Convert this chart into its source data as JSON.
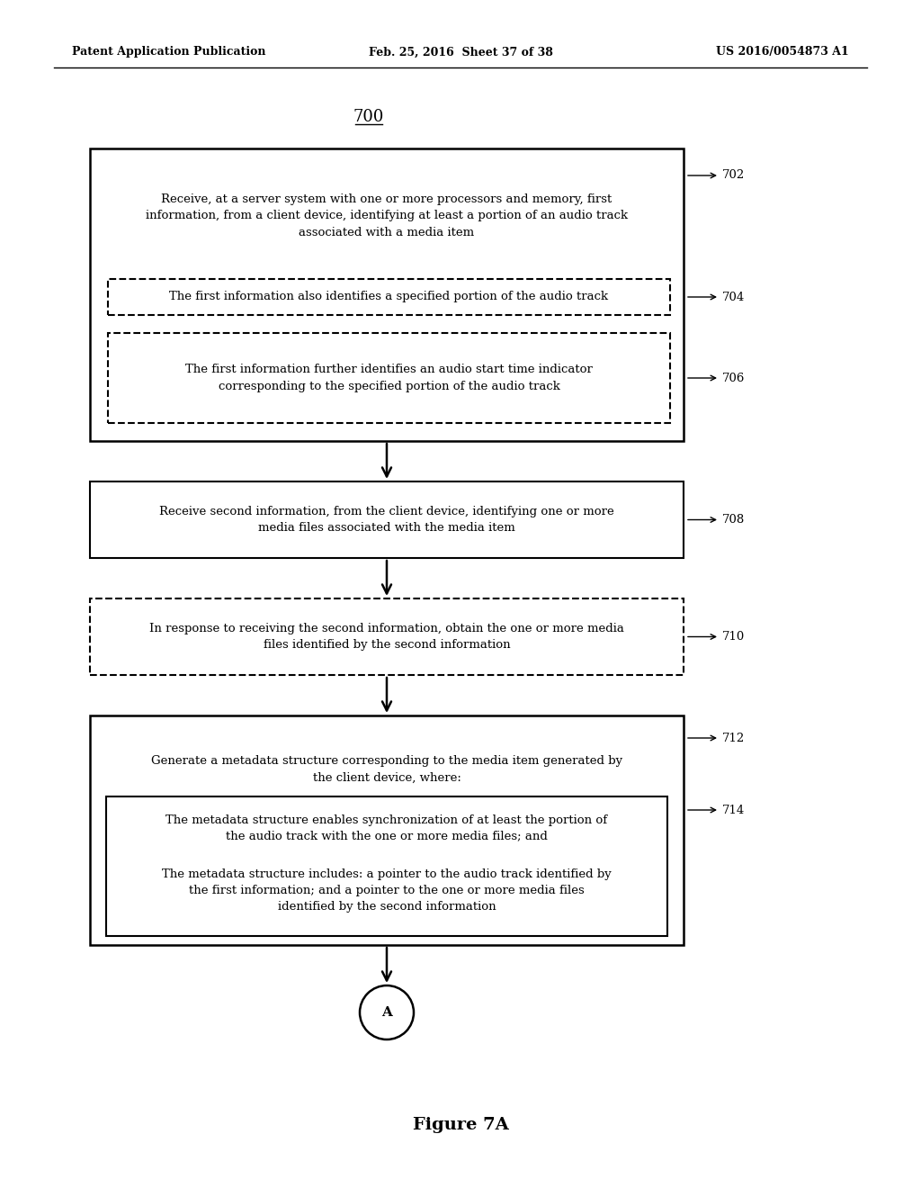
{
  "header_left": "Patent Application Publication",
  "header_center": "Feb. 25, 2016  Sheet 37 of 38",
  "header_right": "US 2016/0054873 A1",
  "footer_text": "Figure 7A",
  "bg_color": "#ffffff",
  "title": "700",
  "box702_text": "Receive, at a server system with one or more processors and memory, first\ninformation, from a client device, identifying at least a portion of an audio track\nassociated with a media item",
  "box702_label": "702",
  "box704_text": "The first information also identifies a specified portion of the audio track",
  "box704_label": "704",
  "box706_text": "The first information further identifies an audio start time indicator\ncorresponding to the specified portion of the audio track",
  "box706_label": "706",
  "box708_text": "Receive second information, from the client device, identifying one or more\nmedia files associated with the media item",
  "box708_label": "708",
  "box710_text": "In response to receiving the second information, obtain the one or more media\nfiles identified by the second information",
  "box710_label": "710",
  "box712_text": "Generate a metadata structure corresponding to the media item generated by\nthe client device, where:",
  "box712_label": "712",
  "box714a_text": "The metadata structure enables synchronization of at least the portion of\nthe audio track with the one or more media files; and",
  "box714b_text": "The metadata structure includes: a pointer to the audio track identified by\nthe first information; and a pointer to the one or more media files\nidentified by the second information",
  "box714_label": "714",
  "circle_text": "A"
}
